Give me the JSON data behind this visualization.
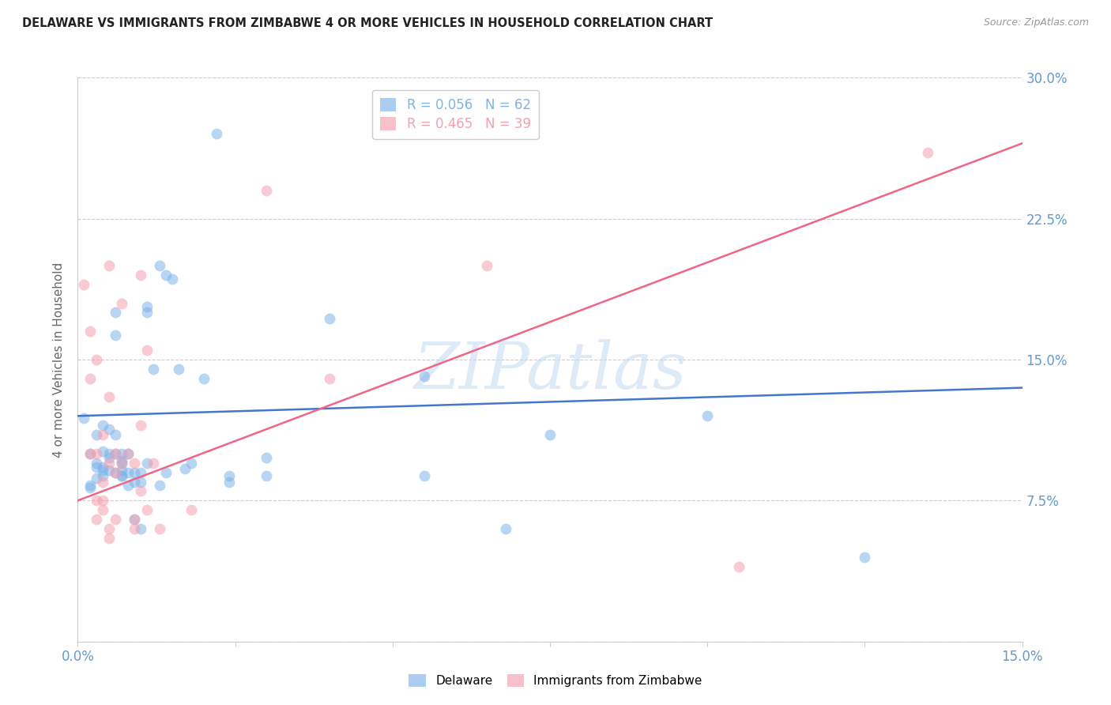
{
  "title": "DELAWARE VS IMMIGRANTS FROM ZIMBABWE 4 OR MORE VEHICLES IN HOUSEHOLD CORRELATION CHART",
  "source": "Source: ZipAtlas.com",
  "ylabel": "4 or more Vehicles in Household",
  "xmin": 0.0,
  "xmax": 0.15,
  "ymin": 0.0,
  "ymax": 0.3,
  "yticks": [
    0.0,
    0.075,
    0.15,
    0.225,
    0.3
  ],
  "ytick_labels_right": [
    "",
    "7.5%",
    "15.0%",
    "22.5%",
    "30.0%"
  ],
  "delaware_color": "#7EB3E8",
  "zimbabwe_color": "#F4A0B0",
  "delaware_line_color": "#4477CC",
  "zimbabwe_line_color": "#EE6688",
  "watermark_text": "ZIPatlas",
  "watermark_color": "#C8DDEF",
  "grid_color": "#CCCCCC",
  "background_color": "#FFFFFF",
  "title_color": "#222222",
  "axis_label_color": "#6699CC",
  "legend_entries": [
    {
      "label": "Delaware",
      "R": "0.056",
      "N": "62",
      "color": "#7EB3E8"
    },
    {
      "label": "Immigrants from Zimbabwe",
      "R": "0.465",
      "N": "39",
      "color": "#F4A0B0"
    }
  ],
  "delaware_points": [
    [
      0.001,
      0.119
    ],
    [
      0.002,
      0.083
    ],
    [
      0.002,
      0.082
    ],
    [
      0.002,
      0.1
    ],
    [
      0.003,
      0.093
    ],
    [
      0.003,
      0.087
    ],
    [
      0.003,
      0.095
    ],
    [
      0.003,
      0.11
    ],
    [
      0.004,
      0.093
    ],
    [
      0.004,
      0.115
    ],
    [
      0.004,
      0.091
    ],
    [
      0.004,
      0.101
    ],
    [
      0.004,
      0.088
    ],
    [
      0.005,
      0.1
    ],
    [
      0.005,
      0.113
    ],
    [
      0.005,
      0.098
    ],
    [
      0.005,
      0.091
    ],
    [
      0.006,
      0.175
    ],
    [
      0.006,
      0.163
    ],
    [
      0.006,
      0.11
    ],
    [
      0.006,
      0.1
    ],
    [
      0.006,
      0.09
    ],
    [
      0.007,
      0.1
    ],
    [
      0.007,
      0.095
    ],
    [
      0.007,
      0.088
    ],
    [
      0.007,
      0.088
    ],
    [
      0.007,
      0.091
    ],
    [
      0.007,
      0.096
    ],
    [
      0.008,
      0.083
    ],
    [
      0.008,
      0.1
    ],
    [
      0.008,
      0.09
    ],
    [
      0.009,
      0.09
    ],
    [
      0.009,
      0.085
    ],
    [
      0.009,
      0.065
    ],
    [
      0.01,
      0.06
    ],
    [
      0.01,
      0.085
    ],
    [
      0.01,
      0.09
    ],
    [
      0.011,
      0.175
    ],
    [
      0.011,
      0.178
    ],
    [
      0.011,
      0.095
    ],
    [
      0.012,
      0.145
    ],
    [
      0.013,
      0.2
    ],
    [
      0.013,
      0.083
    ],
    [
      0.014,
      0.195
    ],
    [
      0.014,
      0.09
    ],
    [
      0.015,
      0.193
    ],
    [
      0.016,
      0.145
    ],
    [
      0.017,
      0.092
    ],
    [
      0.018,
      0.095
    ],
    [
      0.02,
      0.14
    ],
    [
      0.022,
      0.27
    ],
    [
      0.024,
      0.088
    ],
    [
      0.024,
      0.085
    ],
    [
      0.03,
      0.098
    ],
    [
      0.03,
      0.088
    ],
    [
      0.04,
      0.172
    ],
    [
      0.055,
      0.141
    ],
    [
      0.055,
      0.088
    ],
    [
      0.068,
      0.06
    ],
    [
      0.075,
      0.11
    ],
    [
      0.1,
      0.12
    ],
    [
      0.125,
      0.045
    ]
  ],
  "zimbabwe_points": [
    [
      0.001,
      0.19
    ],
    [
      0.002,
      0.165
    ],
    [
      0.002,
      0.14
    ],
    [
      0.002,
      0.1
    ],
    [
      0.003,
      0.15
    ],
    [
      0.003,
      0.1
    ],
    [
      0.003,
      0.075
    ],
    [
      0.003,
      0.065
    ],
    [
      0.004,
      0.11
    ],
    [
      0.004,
      0.085
    ],
    [
      0.004,
      0.075
    ],
    [
      0.004,
      0.07
    ],
    [
      0.005,
      0.13
    ],
    [
      0.005,
      0.095
    ],
    [
      0.005,
      0.06
    ],
    [
      0.005,
      0.055
    ],
    [
      0.006,
      0.1
    ],
    [
      0.006,
      0.09
    ],
    [
      0.006,
      0.065
    ],
    [
      0.007,
      0.18
    ],
    [
      0.007,
      0.095
    ],
    [
      0.008,
      0.1
    ],
    [
      0.009,
      0.095
    ],
    [
      0.009,
      0.065
    ],
    [
      0.009,
      0.06
    ],
    [
      0.01,
      0.115
    ],
    [
      0.01,
      0.08
    ],
    [
      0.011,
      0.155
    ],
    [
      0.011,
      0.07
    ],
    [
      0.012,
      0.095
    ],
    [
      0.013,
      0.06
    ],
    [
      0.018,
      0.07
    ],
    [
      0.03,
      0.24
    ],
    [
      0.04,
      0.14
    ],
    [
      0.065,
      0.2
    ],
    [
      0.105,
      0.04
    ],
    [
      0.135,
      0.26
    ],
    [
      0.005,
      0.2
    ],
    [
      0.01,
      0.195
    ]
  ],
  "delaware_trend": [
    0.12,
    0.135
  ],
  "zimbabwe_trend": [
    0.075,
    0.265
  ]
}
